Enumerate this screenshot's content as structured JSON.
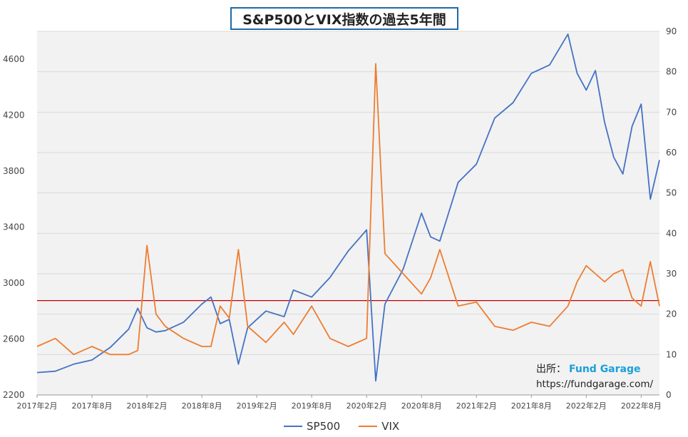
{
  "title": "S&P500とVIX指数の過去5年間",
  "source": {
    "label": "出所：",
    "brand": "Fund Garage",
    "url": "https://fundgarage.com/"
  },
  "colors": {
    "sp500": "#4472c4",
    "vix": "#ed7d31",
    "ref_line": "#c00000",
    "plot_bg": "#f2f2f2",
    "gridline": "#d9d9d9"
  },
  "chart_data": {
    "type": "line",
    "title": "S&P500とVIX指数の過去5年間",
    "x_tick_labels": [
      "2017年2月",
      "2017年8月",
      "2018年2月",
      "2018年8月",
      "2019年2月",
      "2019年8月",
      "2020年2月",
      "2020年8月",
      "2021年2月",
      "2021年8月",
      "2022年2月",
      "2022年8月"
    ],
    "x_range": [
      "2017-02",
      "2022-10"
    ],
    "y_left": {
      "ticks": [
        2200,
        2600,
        3000,
        3400,
        3800,
        4200,
        4600
      ],
      "range": [
        2200,
        4800
      ],
      "series": "SP500"
    },
    "y_right": {
      "ticks": [
        0,
        10,
        20,
        30,
        40,
        50,
        60,
        70,
        80,
        90
      ],
      "range": [
        0,
        90
      ],
      "series": "VIX"
    },
    "gridlines": "horizontal",
    "legend": "bottom",
    "reference_line": {
      "axis": "left",
      "value": 2875
    },
    "series": [
      {
        "name": "SP500",
        "axis": "left",
        "x": [
          "2017-02",
          "2017-04",
          "2017-06",
          "2017-08",
          "2017-10",
          "2017-12",
          "2018-01",
          "2018-02",
          "2018-03",
          "2018-04",
          "2018-06",
          "2018-08",
          "2018-09",
          "2018-10",
          "2018-11",
          "2018-12",
          "2019-01",
          "2019-03",
          "2019-05",
          "2019-06",
          "2019-08",
          "2019-10",
          "2019-12",
          "2020-02",
          "2020-03",
          "2020-04",
          "2020-06",
          "2020-08",
          "2020-09",
          "2020-10",
          "2020-12",
          "2021-02",
          "2021-04",
          "2021-06",
          "2021-08",
          "2021-10",
          "2021-12",
          "2022-01",
          "2022-02",
          "2022-03",
          "2022-04",
          "2022-05",
          "2022-06",
          "2022-07",
          "2022-08",
          "2022-09",
          "2022-10"
        ],
        "y": [
          2360,
          2370,
          2420,
          2450,
          2540,
          2670,
          2820,
          2680,
          2650,
          2660,
          2720,
          2850,
          2900,
          2710,
          2740,
          2420,
          2680,
          2800,
          2760,
          2950,
          2900,
          3040,
          3230,
          3380,
          2300,
          2850,
          3100,
          3500,
          3330,
          3300,
          3720,
          3850,
          4180,
          4290,
          4500,
          4560,
          4780,
          4500,
          4380,
          4520,
          4150,
          3900,
          3780,
          4120,
          4280,
          3600,
          3880
        ]
      },
      {
        "name": "VIX",
        "axis": "right",
        "x": [
          "2017-02",
          "2017-04",
          "2017-06",
          "2017-08",
          "2017-10",
          "2017-12",
          "2018-01",
          "2018-02",
          "2018-03",
          "2018-04",
          "2018-06",
          "2018-08",
          "2018-09",
          "2018-10",
          "2018-11",
          "2018-12",
          "2019-01",
          "2019-03",
          "2019-05",
          "2019-06",
          "2019-08",
          "2019-10",
          "2019-12",
          "2020-02",
          "2020-03",
          "2020-04",
          "2020-06",
          "2020-08",
          "2020-09",
          "2020-10",
          "2020-12",
          "2021-02",
          "2021-04",
          "2021-06",
          "2021-08",
          "2021-10",
          "2021-12",
          "2022-01",
          "2022-02",
          "2022-03",
          "2022-04",
          "2022-05",
          "2022-06",
          "2022-07",
          "2022-08",
          "2022-09",
          "2022-10"
        ],
        "y": [
          12,
          14,
          10,
          12,
          10,
          10,
          11,
          37,
          20,
          17,
          14,
          12,
          12,
          22,
          19,
          36,
          17,
          13,
          18,
          15,
          22,
          14,
          12,
          14,
          82,
          35,
          30,
          25,
          29,
          36,
          22,
          23,
          17,
          16,
          18,
          17,
          22,
          28,
          32,
          30,
          28,
          30,
          31,
          24,
          22,
          33,
          22
        ]
      }
    ]
  }
}
